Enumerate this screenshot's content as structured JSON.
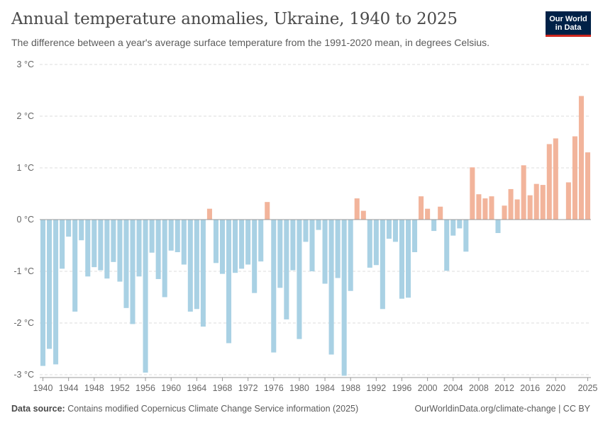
{
  "header": {
    "title": "Annual temperature anomalies, Ukraine, 1940 to 2025",
    "subtitle": "The difference between a year's average surface temperature from the 1991-2020 mean, in degrees Celsius."
  },
  "logo": {
    "line1": "Our World",
    "line2": "in Data"
  },
  "footer": {
    "source_label": "Data source:",
    "source_text": "Contains modified Copernicus Climate Change Service information (2025)",
    "credit": "OurWorldinData.org/climate-change | CC BY"
  },
  "colors": {
    "positive": "#f2b49b",
    "negative": "#a9d1e4",
    "grid": "#dddddd",
    "zero_line": "#999999"
  },
  "chart_data": {
    "type": "bar",
    "x_start": 1940,
    "x_end": 2025,
    "ylim": [
      -3,
      3
    ],
    "y_ticks": [
      {
        "value": 3,
        "label": "3 °C"
      },
      {
        "value": 2,
        "label": "2 °C"
      },
      {
        "value": 1,
        "label": "1 °C"
      },
      {
        "value": 0,
        "label": "0 °C"
      },
      {
        "value": -1,
        "label": "-1 °C"
      },
      {
        "value": -2,
        "label": "-2 °C"
      },
      {
        "value": -3,
        "label": "-3 °C"
      }
    ],
    "x_ticks": [
      1940,
      1944,
      1948,
      1952,
      1956,
      1960,
      1964,
      1968,
      1972,
      1976,
      1980,
      1984,
      1988,
      1992,
      1996,
      2000,
      2004,
      2008,
      2012,
      2016,
      2020,
      2025
    ],
    "grid": true,
    "values": [
      -2.83,
      -2.5,
      -2.8,
      -0.95,
      -0.33,
      -1.78,
      -0.4,
      -1.1,
      -0.92,
      -0.98,
      -1.14,
      -0.82,
      -1.2,
      -1.71,
      -2.02,
      -1.1,
      -2.96,
      -0.64,
      -1.15,
      -1.5,
      -0.6,
      -0.63,
      -0.87,
      -1.78,
      -1.73,
      -2.07,
      0.21,
      -0.84,
      -1.05,
      -2.39,
      -1.03,
      -0.95,
      -0.87,
      -1.42,
      -0.81,
      0.34,
      -2.57,
      -1.32,
      -1.93,
      -0.98,
      -2.31,
      -0.43,
      -1.0,
      -0.2,
      -1.24,
      -2.61,
      -1.13,
      -3.02,
      -1.38,
      0.41,
      0.17,
      -0.93,
      -0.88,
      -1.73,
      -0.37,
      -0.43,
      -1.53,
      -1.51,
      -0.63,
      0.45,
      0.21,
      -0.22,
      0.25,
      -0.99,
      -0.31,
      -0.17,
      -0.62,
      1.01,
      0.49,
      0.41,
      0.45,
      -0.26,
      0.27,
      0.59,
      0.39,
      1.05,
      0.47,
      0.69,
      0.67,
      1.46,
      1.57,
      0.0,
      0.72,
      1.61,
      2.39,
      1.3
    ]
  }
}
